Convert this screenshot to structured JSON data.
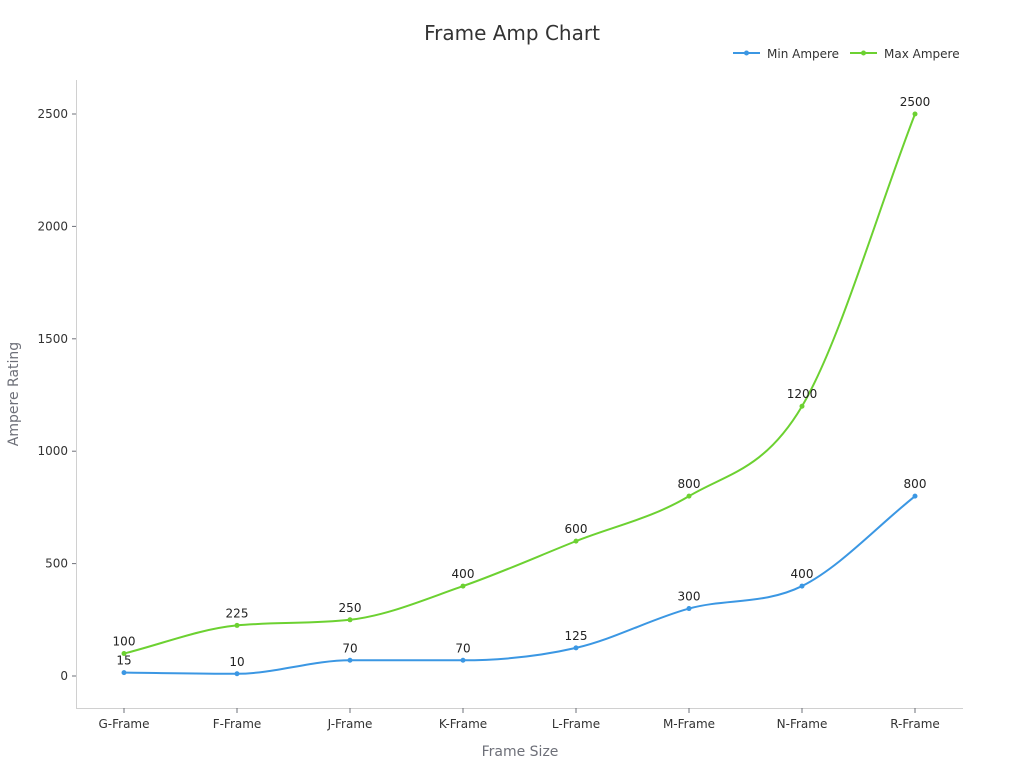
{
  "chart_data": {
    "type": "line",
    "title": "Frame Amp Chart",
    "xlabel": "Frame Size",
    "ylabel": "Ampere Rating",
    "categories": [
      "G-Frame",
      "F-Frame",
      "J-Frame",
      "K-Frame",
      "L-Frame",
      "M-Frame",
      "N-Frame",
      "R-Frame"
    ],
    "ylim": [
      -150,
      2650
    ],
    "yticks": [
      0,
      500,
      1000,
      1500,
      2000,
      2500
    ],
    "grid": false,
    "smooth": true,
    "legend_position": "top-right",
    "series": [
      {
        "name": "Min Ampere",
        "color": "#3b97e3",
        "values": [
          15,
          10,
          70,
          70,
          125,
          300,
          400,
          800
        ]
      },
      {
        "name": "Max Ampere",
        "color": "#6cd131",
        "values": [
          100,
          225,
          250,
          400,
          600,
          800,
          1200,
          2500
        ]
      }
    ]
  }
}
